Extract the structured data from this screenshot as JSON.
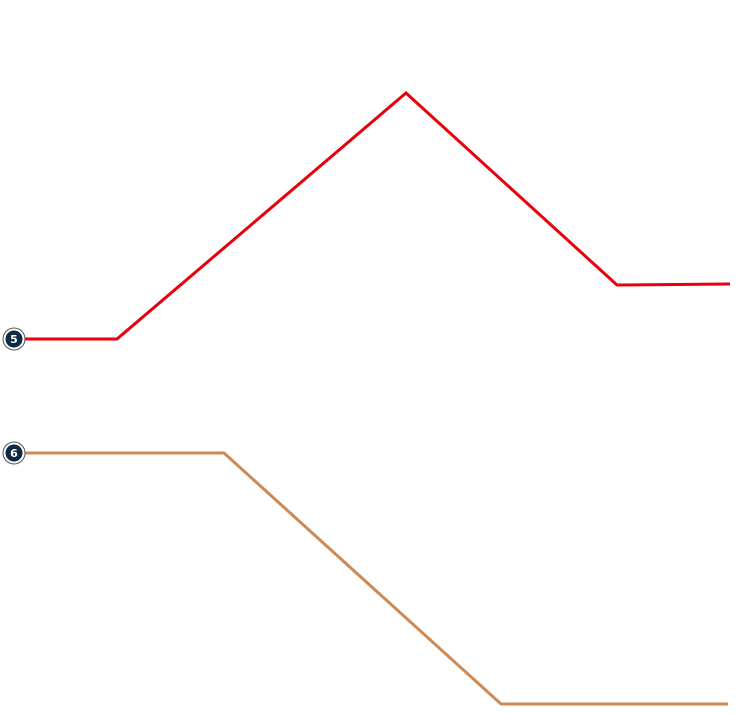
{
  "markers": [
    {
      "label": "5"
    },
    {
      "label": "6"
    }
  ]
}
